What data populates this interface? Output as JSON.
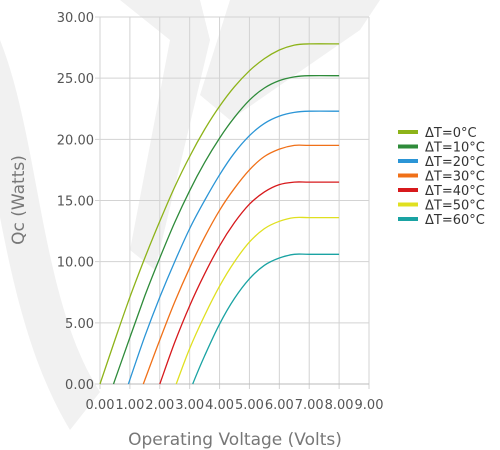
{
  "chart_data": {
    "type": "line",
    "xlabel": "Operating Voltage (Volts)",
    "ylabel": "Qc (Watts)",
    "xlim": [
      0,
      9
    ],
    "ylim": [
      0,
      30
    ],
    "x_ticks": [
      "0.00",
      "1.00",
      "2.00",
      "3.00",
      "4.00",
      "5.00",
      "6.00",
      "7.00",
      "8.00",
      "9.00"
    ],
    "y_ticks": [
      "0.00",
      "5.00",
      "10.00",
      "15.00",
      "20.00",
      "25.00",
      "30.00"
    ],
    "grid": true,
    "legend": "right",
    "series": [
      {
        "name": "ΔT=0°C",
        "color": "#8db319",
        "points": [
          [
            0,
            0
          ],
          [
            0.5,
            3.6
          ],
          [
            1.0,
            7.1
          ],
          [
            1.5,
            10.3
          ],
          [
            2.0,
            13.3
          ],
          [
            2.5,
            16.1
          ],
          [
            3.0,
            18.6
          ],
          [
            3.5,
            20.8
          ],
          [
            4.0,
            22.7
          ],
          [
            4.5,
            24.3
          ],
          [
            5.0,
            25.6
          ],
          [
            5.5,
            26.6
          ],
          [
            6.0,
            27.3
          ],
          [
            6.5,
            27.7
          ],
          [
            7.0,
            27.8
          ],
          [
            8.0,
            27.8
          ]
        ]
      },
      {
        "name": "ΔT=10°C",
        "color": "#2e8b3a",
        "points": [
          [
            0.45,
            0
          ],
          [
            1.0,
            3.8
          ],
          [
            1.5,
            7.2
          ],
          [
            2.0,
            10.3
          ],
          [
            2.5,
            13.2
          ],
          [
            3.0,
            15.8
          ],
          [
            3.5,
            18.1
          ],
          [
            4.0,
            20.1
          ],
          [
            4.5,
            21.8
          ],
          [
            5.0,
            23.2
          ],
          [
            5.5,
            24.2
          ],
          [
            6.0,
            24.8
          ],
          [
            6.5,
            25.1
          ],
          [
            7.0,
            25.2
          ],
          [
            8.0,
            25.2
          ]
        ]
      },
      {
        "name": "ΔT=20°C",
        "color": "#2b95d6",
        "points": [
          [
            0.95,
            0
          ],
          [
            1.5,
            3.9
          ],
          [
            2.0,
            7.1
          ],
          [
            2.5,
            10.0
          ],
          [
            3.0,
            12.7
          ],
          [
            3.5,
            15.0
          ],
          [
            4.0,
            17.1
          ],
          [
            4.5,
            18.9
          ],
          [
            5.0,
            20.3
          ],
          [
            5.5,
            21.3
          ],
          [
            6.0,
            21.9
          ],
          [
            6.5,
            22.2
          ],
          [
            7.0,
            22.3
          ],
          [
            8.0,
            22.3
          ]
        ]
      },
      {
        "name": "ΔT=30°C",
        "color": "#f07018",
        "points": [
          [
            1.45,
            0
          ],
          [
            2.0,
            3.6
          ],
          [
            2.5,
            6.7
          ],
          [
            3.0,
            9.5
          ],
          [
            3.5,
            12.0
          ],
          [
            4.0,
            14.2
          ],
          [
            4.5,
            16.0
          ],
          [
            5.0,
            17.5
          ],
          [
            5.5,
            18.6
          ],
          [
            6.0,
            19.2
          ],
          [
            6.5,
            19.5
          ],
          [
            7.0,
            19.5
          ],
          [
            8.0,
            19.5
          ]
        ]
      },
      {
        "name": "ΔT=40°C",
        "color": "#d7191c",
        "points": [
          [
            2.0,
            0
          ],
          [
            2.5,
            3.4
          ],
          [
            3.0,
            6.4
          ],
          [
            3.5,
            9.0
          ],
          [
            4.0,
            11.3
          ],
          [
            4.5,
            13.2
          ],
          [
            5.0,
            14.7
          ],
          [
            5.5,
            15.7
          ],
          [
            6.0,
            16.3
          ],
          [
            6.5,
            16.5
          ],
          [
            7.0,
            16.5
          ],
          [
            8.0,
            16.5
          ]
        ]
      },
      {
        "name": "ΔT=50°C",
        "color": "#e0e020",
        "points": [
          [
            2.55,
            0
          ],
          [
            3.0,
            2.9
          ],
          [
            3.5,
            5.6
          ],
          [
            4.0,
            8.0
          ],
          [
            4.5,
            10.0
          ],
          [
            5.0,
            11.6
          ],
          [
            5.5,
            12.7
          ],
          [
            6.0,
            13.3
          ],
          [
            6.5,
            13.6
          ],
          [
            7.0,
            13.6
          ],
          [
            8.0,
            13.6
          ]
        ]
      },
      {
        "name": "ΔT=60°C",
        "color": "#1aa3a3",
        "points": [
          [
            3.1,
            0
          ],
          [
            3.5,
            2.3
          ],
          [
            4.0,
            4.9
          ],
          [
            4.5,
            7.0
          ],
          [
            5.0,
            8.6
          ],
          [
            5.5,
            9.7
          ],
          [
            6.0,
            10.3
          ],
          [
            6.5,
            10.6
          ],
          [
            7.0,
            10.6
          ],
          [
            8.0,
            10.6
          ]
        ]
      }
    ]
  }
}
